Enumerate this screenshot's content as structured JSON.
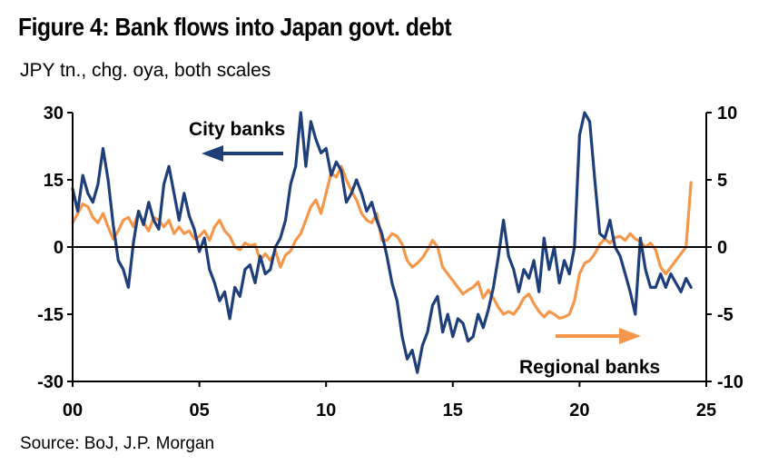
{
  "title": "Figure 4: Bank flows into Japan govt. debt",
  "subtitle": "JPY tn., chg. oya, both scales",
  "source": "Source: BoJ, J.P. Morgan",
  "colors": {
    "city": "#1f3f7a",
    "regional": "#f5974a",
    "axis": "#000000"
  },
  "chart_data": {
    "type": "line",
    "x_ticks": [
      "00",
      "05",
      "10",
      "15",
      "20",
      "25"
    ],
    "x_range": [
      0,
      25
    ],
    "left_axis": {
      "ticks": [
        "30",
        "15",
        "0",
        "-15",
        "-30"
      ],
      "range": [
        -30,
        30
      ]
    },
    "right_axis": {
      "ticks": [
        "10",
        "5",
        "0",
        "-5",
        "-10"
      ],
      "range": [
        -10,
        10
      ]
    },
    "annotations": {
      "city": "City banks",
      "regional": "Regional banks"
    },
    "series": [
      {
        "name": "City banks",
        "axis": "left",
        "x": [
          0.0,
          0.2,
          0.4,
          0.6,
          0.8,
          1.0,
          1.2,
          1.4,
          1.6,
          1.8,
          2.0,
          2.2,
          2.4,
          2.6,
          2.8,
          3.0,
          3.2,
          3.4,
          3.6,
          3.8,
          4.0,
          4.2,
          4.4,
          4.6,
          4.8,
          5.0,
          5.2,
          5.4,
          5.6,
          5.8,
          6.0,
          6.2,
          6.4,
          6.6,
          6.8,
          7.0,
          7.2,
          7.4,
          7.6,
          7.8,
          8.0,
          8.2,
          8.4,
          8.6,
          8.8,
          9.0,
          9.2,
          9.4,
          9.6,
          9.8,
          10.0,
          10.2,
          10.4,
          10.6,
          10.8,
          11.0,
          11.2,
          11.4,
          11.6,
          11.8,
          12.0,
          12.2,
          12.4,
          12.6,
          12.8,
          13.0,
          13.2,
          13.4,
          13.6,
          13.8,
          14.0,
          14.2,
          14.4,
          14.6,
          14.8,
          15.0,
          15.2,
          15.4,
          15.6,
          15.8,
          16.0,
          16.2,
          16.4,
          16.6,
          16.8,
          17.0,
          17.2,
          17.4,
          17.6,
          17.8,
          18.0,
          18.2,
          18.4,
          18.6,
          18.8,
          19.0,
          19.2,
          19.4,
          19.6,
          19.8,
          20.0,
          20.2,
          20.4,
          20.6,
          20.8,
          21.0,
          21.2,
          21.4,
          21.6,
          21.8,
          22.0,
          22.2,
          22.4,
          22.6,
          22.8,
          23.0,
          23.2,
          23.4,
          23.6,
          23.8,
          24.0,
          24.2,
          24.4
        ],
        "values": [
          13,
          8,
          16,
          12,
          10,
          14,
          22,
          15,
          5,
          -3,
          -5,
          -9,
          1,
          8,
          5,
          10,
          6,
          4,
          14,
          18,
          12,
          6,
          12,
          7,
          4,
          -1,
          2,
          -5,
          -8,
          -12,
          -10,
          -16,
          -9,
          -11,
          -5,
          -4,
          -8,
          -2,
          -6,
          -5,
          0,
          2,
          6,
          14,
          18,
          30,
          18,
          28,
          24,
          21,
          22,
          16,
          19,
          17,
          10,
          12,
          15,
          12,
          8,
          10,
          6,
          3,
          -2,
          -8,
          -12,
          -20,
          -25,
          -23,
          -28,
          -22,
          -19,
          -13,
          -11,
          -19,
          -15,
          -20,
          -16,
          -17,
          -21,
          -20,
          -15,
          -18,
          -14,
          -9,
          -2,
          6,
          -2,
          -5,
          -10,
          -5,
          -7,
          -3,
          -10,
          2,
          -5,
          0,
          -8,
          -3,
          -6,
          0,
          25,
          30,
          28,
          15,
          3,
          2,
          6,
          0,
          -2,
          -6,
          -10,
          -15,
          2,
          -5,
          -9,
          -9,
          -6,
          -9,
          -6,
          -8,
          -10,
          -7,
          -9
        ]
      },
      {
        "name": "Regional banks",
        "axis": "right",
        "x": [
          0.0,
          0.2,
          0.4,
          0.6,
          0.8,
          1.0,
          1.2,
          1.4,
          1.6,
          1.8,
          2.0,
          2.2,
          2.4,
          2.6,
          2.8,
          3.0,
          3.2,
          3.4,
          3.6,
          3.8,
          4.0,
          4.2,
          4.4,
          4.6,
          4.8,
          5.0,
          5.2,
          5.4,
          5.6,
          5.8,
          6.0,
          6.2,
          6.4,
          6.6,
          6.8,
          7.0,
          7.2,
          7.4,
          7.6,
          7.8,
          8.0,
          8.2,
          8.4,
          8.6,
          8.8,
          9.0,
          9.2,
          9.4,
          9.6,
          9.8,
          10.0,
          10.2,
          10.4,
          10.6,
          10.8,
          11.0,
          11.2,
          11.4,
          11.6,
          11.8,
          12.0,
          12.2,
          12.4,
          12.6,
          12.8,
          13.0,
          13.2,
          13.4,
          13.6,
          13.8,
          14.0,
          14.2,
          14.4,
          14.6,
          14.8,
          15.0,
          15.2,
          15.4,
          15.6,
          15.8,
          16.0,
          16.2,
          16.4,
          16.6,
          16.8,
          17.0,
          17.2,
          17.4,
          17.6,
          17.8,
          18.0,
          18.2,
          18.4,
          18.6,
          18.8,
          19.0,
          19.2,
          19.4,
          19.6,
          19.8,
          20.0,
          20.2,
          20.4,
          20.6,
          20.8,
          21.0,
          21.2,
          21.4,
          21.6,
          21.8,
          22.0,
          22.2,
          22.4,
          22.6,
          22.8,
          23.0,
          23.2,
          23.4,
          23.6,
          23.8,
          24.0,
          24.2,
          24.4
        ],
        "values": [
          1.8,
          2.5,
          3.2,
          3.0,
          2.2,
          1.8,
          2.5,
          1.5,
          0.6,
          1.2,
          2.0,
          2.2,
          1.5,
          2.6,
          1.8,
          1.2,
          2.2,
          2.0,
          1.5,
          2.0,
          1.0,
          1.5,
          1.0,
          1.2,
          0.6,
          0.8,
          1.2,
          0.5,
          1.5,
          2.0,
          1.2,
          0.8,
          0.0,
          -0.2,
          0.3,
          0.1,
          0.2,
          -1.0,
          -0.5,
          -1.0,
          -0.3,
          -1.5,
          -0.6,
          -0.3,
          0.5,
          1.0,
          2.0,
          3.0,
          3.5,
          2.5,
          4.0,
          5.5,
          5.2,
          6.0,
          5.0,
          4.2,
          3.5,
          2.5,
          2.0,
          1.8,
          2.5,
          0.5,
          0.5,
          1.0,
          0.8,
          0.2,
          -1.0,
          -1.5,
          -1.2,
          -0.8,
          -0.2,
          0.5,
          0.0,
          -1.5,
          -2.0,
          -2.5,
          -3.0,
          -3.5,
          -3.2,
          -3.0,
          -2.6,
          -3.8,
          -3.2,
          -3.8,
          -4.5,
          -5.0,
          -4.8,
          -5.0,
          -4.5,
          -3.8,
          -3.5,
          -4.2,
          -4.8,
          -5.2,
          -4.8,
          -5.0,
          -5.3,
          -5.2,
          -5.0,
          -4.0,
          -2.0,
          -1.2,
          -1.0,
          -0.5,
          0.2,
          0.6,
          0.3,
          0.7,
          0.8,
          0.5,
          1.0,
          0.6,
          0.4,
          0.0,
          0.3,
          -0.2,
          -1.5,
          -2.0,
          -1.5,
          -1.0,
          -0.5,
          0.0,
          4.8
        ]
      }
    ]
  }
}
